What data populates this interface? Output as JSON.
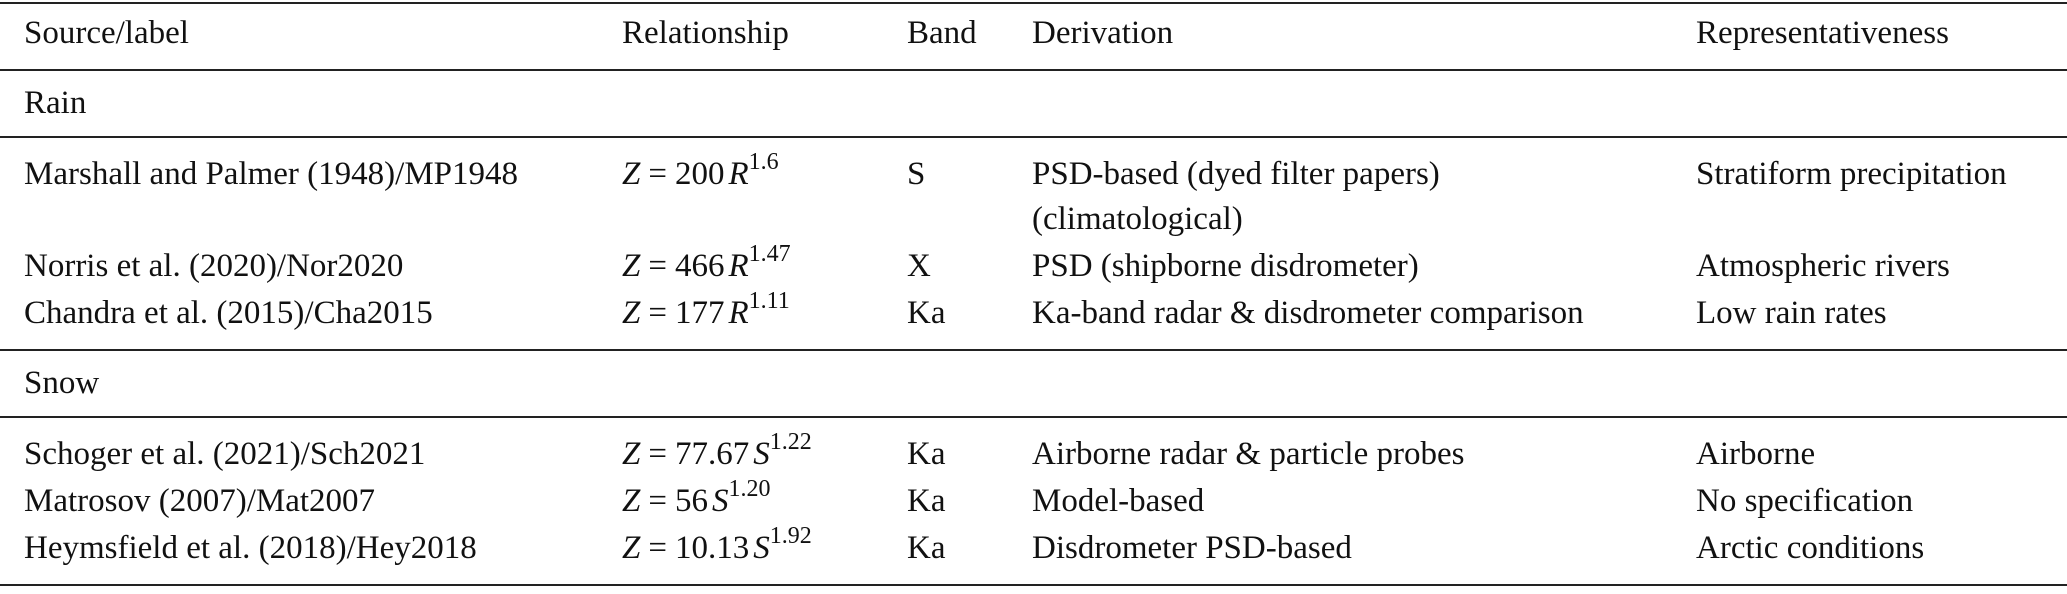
{
  "table": {
    "header": [
      "Source/label",
      "Relationship",
      "Band",
      "Derivation",
      "Representativeness"
    ],
    "sections": [
      {
        "label": "Rain",
        "rows": [
          {
            "source": "Marshall and Palmer (1948)/MP1948",
            "relationship": {
              "lhs": "Z",
              "sign": "=",
              "coef": "200",
              "var": "R",
              "exp": "1.6"
            },
            "band": "S",
            "derivation": [
              "PSD-based (dyed filter papers)",
              "(climatological)"
            ],
            "representativeness": "Stratiform precipitation"
          },
          {
            "source": "Norris et al. (2020)/Nor2020",
            "relationship": {
              "lhs": "Z",
              "sign": "=",
              "coef": "466",
              "var": "R",
              "exp": "1.47"
            },
            "band": "X",
            "derivation": [
              "PSD (shipborne disdrometer)"
            ],
            "representativeness": "Atmospheric rivers"
          },
          {
            "source": "Chandra et al. (2015)/Cha2015",
            "relationship": {
              "lhs": "Z",
              "sign": "=",
              "coef": "177",
              "var": "R",
              "exp": "1.11"
            },
            "band": "Ka",
            "derivation": [
              "Ka-band radar & disdrometer comparison"
            ],
            "representativeness": "Low rain rates"
          }
        ]
      },
      {
        "label": "Snow",
        "rows": [
          {
            "source": "Schoger et al. (2021)/Sch2021",
            "relationship": {
              "lhs": "Z",
              "sign": "=",
              "coef": "77.67",
              "var": "S",
              "exp": "1.22"
            },
            "band": "Ka",
            "derivation": [
              "Airborne radar & particle probes"
            ],
            "representativeness": "Airborne"
          },
          {
            "source": "Matrosov (2007)/Mat2007",
            "relationship": {
              "lhs": "Z",
              "sign": "=",
              "coef": "56",
              "var": "S",
              "exp": "1.20"
            },
            "band": "Ka",
            "derivation": [
              "Model-based"
            ],
            "representativeness": "No specification"
          },
          {
            "source": "Heymsfield et al. (2018)/Hey2018",
            "relationship": {
              "lhs": "Z",
              "sign": "=",
              "coef": "10.13",
              "var": "S",
              "exp": "1.92"
            },
            "band": "Ka",
            "derivation": [
              "Disdrometer PSD-based"
            ],
            "representativeness": "Arctic conditions"
          }
        ]
      }
    ]
  }
}
